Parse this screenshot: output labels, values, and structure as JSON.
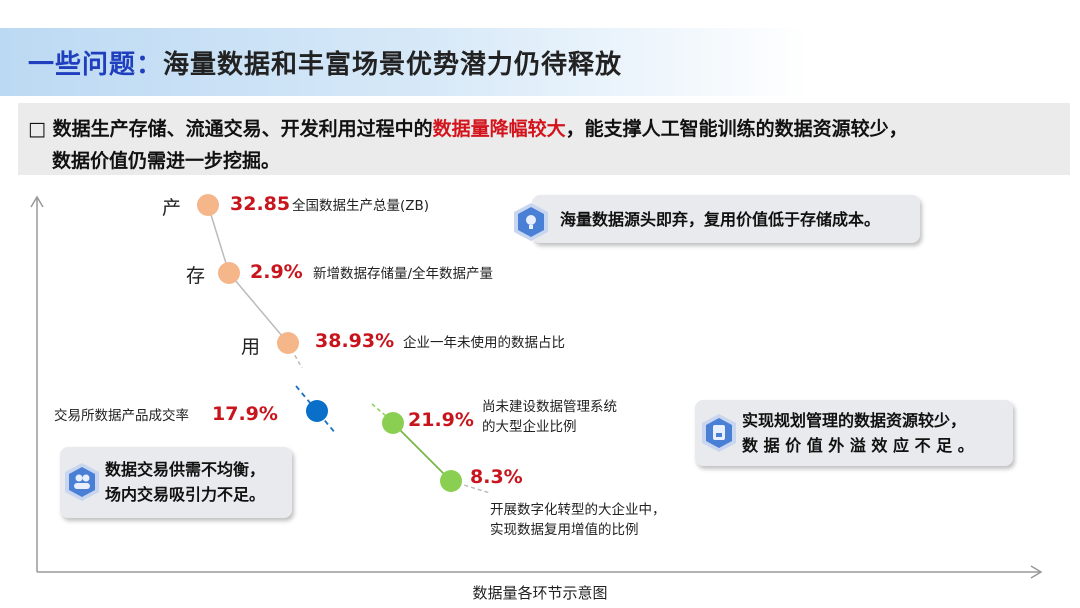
{
  "title": {
    "highlight": "一些问题：",
    "rest": "海量数据和丰富场景优势潜力仍待释放"
  },
  "summary": {
    "bullet": "□",
    "part1": "数据生产存储、流通交易、开发利用过程中的",
    "highlight": "数据量降幅较大",
    "part2": "，能支撑人工智能训练的数据资源较少，",
    "line2": "数据价值仍需进一步挖掘。"
  },
  "stages": [
    {
      "stage": "产",
      "value": "32.85",
      "desc": "全国数据生产总量(ZB)",
      "color": "#f5b68a"
    },
    {
      "stage": "存",
      "value": "2.9%",
      "desc": "新增数据存储量/全年数据产量",
      "color": "#f5b68a"
    },
    {
      "stage": "用",
      "value": "38.93%",
      "desc": "企业一年未使用的数据占比",
      "color": "#f5b68a"
    }
  ],
  "exchange": {
    "desc": "交易所数据产品成交率",
    "value": "17.9%",
    "color": "#0a6fc8"
  },
  "management": [
    {
      "value": "21.9%",
      "desc_lines": [
        "尚未建设数据管理系统",
        "的大型企业比例"
      ],
      "color": "#8bcf52"
    },
    {
      "value": "8.3%",
      "desc_lines": [
        "开展数字化转型的大企业中，",
        "实现数据复用增值的比例"
      ],
      "color": "#8bcf52"
    }
  ],
  "callouts": [
    {
      "icon": "lightbulb-icon",
      "lines": [
        "海量数据源头即弃，复用价值低于存储成本。"
      ]
    },
    {
      "icon": "document-icon",
      "lines": [
        "实现规划管理的数据资源较少，",
        "数 据 价 值 外 溢 效 应 不 足 。"
      ]
    },
    {
      "icon": "users-icon",
      "lines": [
        "数据交易供需不均衡，",
        "场内交易吸引力不足。"
      ]
    }
  ],
  "caption": "数据量各环节示意图",
  "colors": {
    "title_accent": "#1f3fbf",
    "value_red": "#c8141c",
    "icon_blue": "#4a7fd6"
  }
}
